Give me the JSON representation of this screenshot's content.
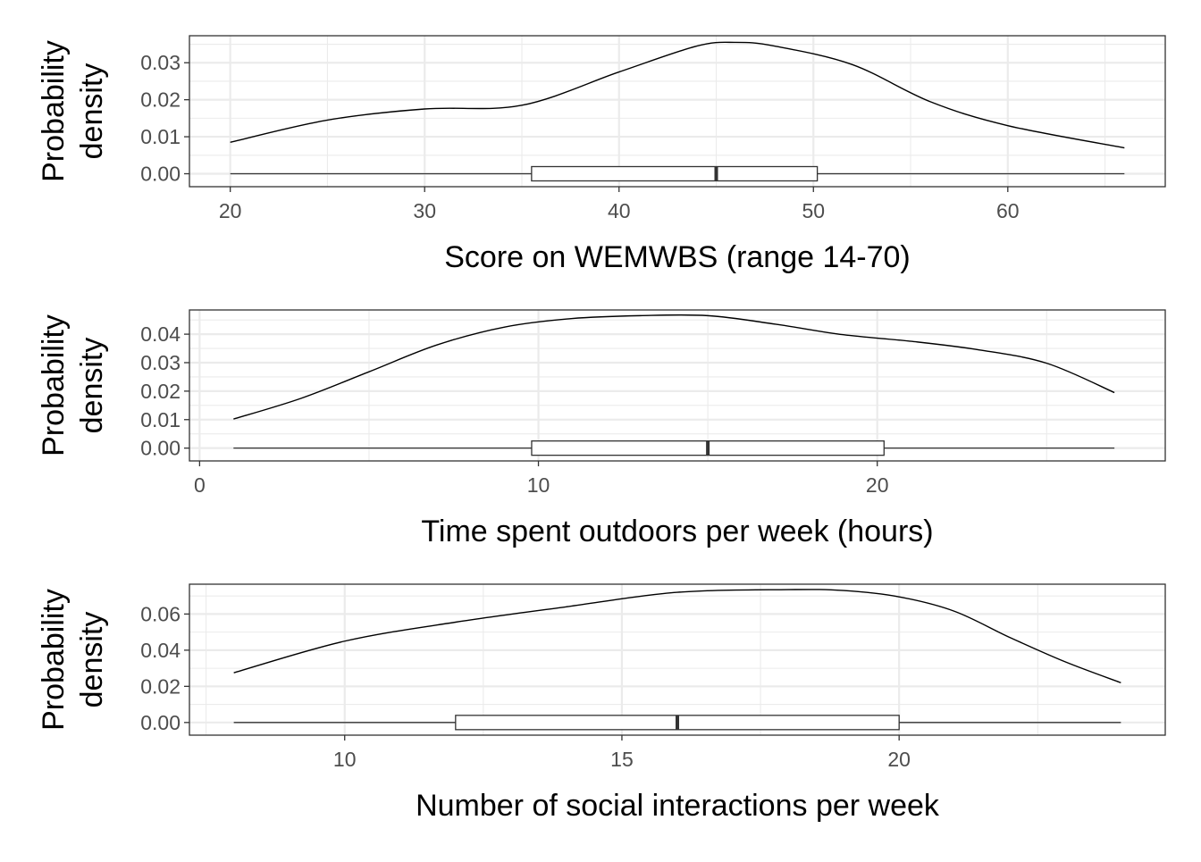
{
  "chart_data": [
    {
      "type": "area",
      "subtype": "density-with-boxplot",
      "xlabel": "Score on WEMWBS (range 14-70)",
      "ylabel": [
        "Probability",
        "density"
      ],
      "xlim": [
        17.9,
        68.1
      ],
      "ylim": [
        -0.0035,
        0.0373
      ],
      "xticks": [
        20,
        30,
        40,
        50,
        60
      ],
      "xtick_labels": [
        "20",
        "30",
        "40",
        "50",
        "60"
      ],
      "yticks": [
        0,
        0.01,
        0.02,
        0.03
      ],
      "ytick_labels": [
        "0.00",
        "0.01",
        "0.02",
        "0.03"
      ],
      "grid": true,
      "density": {
        "x": [
          20,
          25,
          30,
          35,
          40,
          44,
          46,
          48,
          52,
          56,
          60,
          66
        ],
        "y": [
          0.0085,
          0.0145,
          0.0175,
          0.0185,
          0.0275,
          0.0345,
          0.0355,
          0.0345,
          0.0295,
          0.0195,
          0.013,
          0.007
        ]
      },
      "boxplot": {
        "min": 20,
        "q1": 35.5,
        "median": 45,
        "q3": 50.2,
        "max": 66
      }
    },
    {
      "type": "area",
      "subtype": "density-with-boxplot",
      "xlabel": "Time spent outdoors per week (hours)",
      "ylabel": [
        "Probability",
        "density"
      ],
      "xlim": [
        -0.3,
        28.5
      ],
      "ylim": [
        -0.0045,
        0.0485
      ],
      "xticks": [
        0,
        10,
        20
      ],
      "xtick_labels": [
        "0",
        "10",
        "20"
      ],
      "yticks": [
        0,
        0.01,
        0.02,
        0.03,
        0.04
      ],
      "ytick_labels": [
        "0.00",
        "0.01",
        "0.02",
        "0.03",
        "0.04"
      ],
      "grid": true,
      "density": {
        "x": [
          1,
          3,
          5,
          7,
          9,
          11,
          13,
          15,
          17,
          19,
          21,
          23,
          25,
          27
        ],
        "y": [
          0.0102,
          0.0175,
          0.0268,
          0.0362,
          0.0425,
          0.0455,
          0.0465,
          0.0465,
          0.0435,
          0.0398,
          0.0375,
          0.0345,
          0.0298,
          0.0195
        ]
      },
      "boxplot": {
        "min": 1,
        "q1": 9.8,
        "median": 15,
        "q3": 20.2,
        "max": 27
      }
    },
    {
      "type": "area",
      "subtype": "density-with-boxplot",
      "xlabel": "Number of social interactions per week",
      "ylabel": [
        "Probability",
        "density"
      ],
      "xlim": [
        7.2,
        24.8
      ],
      "ylim": [
        -0.007,
        0.0765
      ],
      "xticks": [
        10,
        15,
        20
      ],
      "xtick_labels": [
        "10",
        "15",
        "20"
      ],
      "yticks": [
        0,
        0.02,
        0.04,
        0.06
      ],
      "ytick_labels": [
        "0.00",
        "0.02",
        "0.04",
        "0.06"
      ],
      "grid": true,
      "density": {
        "x": [
          8,
          10,
          12,
          14,
          16,
          18,
          19,
          20,
          21,
          22,
          23,
          24
        ],
        "y": [
          0.0275,
          0.045,
          0.0555,
          0.064,
          0.072,
          0.0735,
          0.073,
          0.0695,
          0.0615,
          0.047,
          0.0335,
          0.022
        ]
      },
      "boxplot": {
        "min": 8,
        "q1": 12,
        "median": 16,
        "q3": 20,
        "max": 24
      }
    }
  ]
}
